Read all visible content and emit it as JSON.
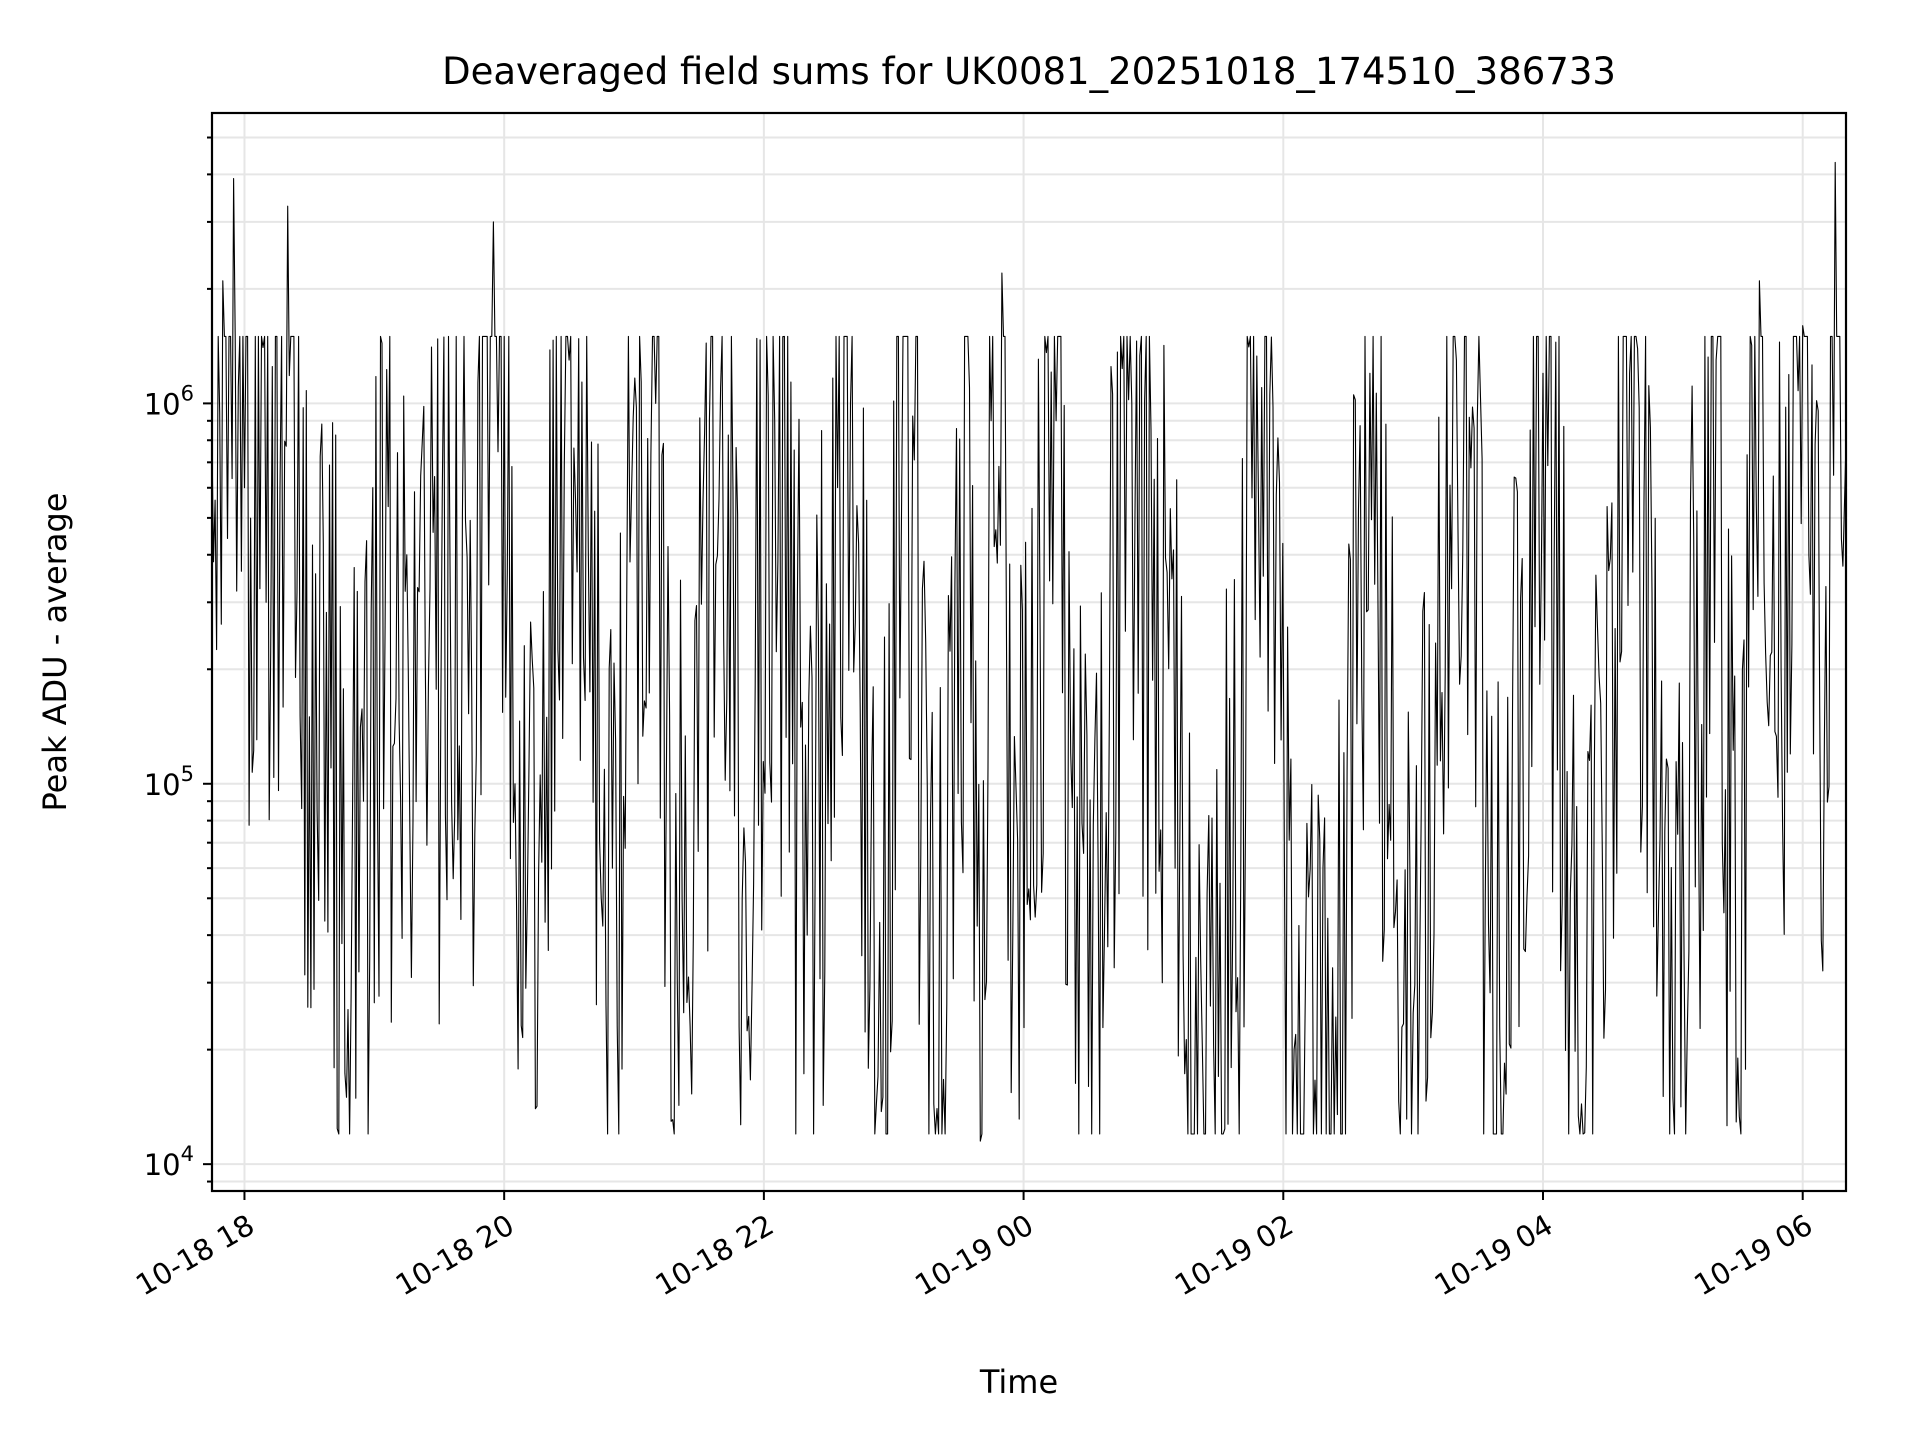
{
  "chart_data": {
    "type": "line",
    "title": "Deaveraged field sums for UK0081_20251018_174510_386733",
    "xlabel": "Time",
    "ylabel": "Peak ADU - average",
    "yscale": "log",
    "ylim": [
      8500,
      5800000
    ],
    "xlim": [
      "2025-10-18 17:45",
      "2025-10-19 06:20"
    ],
    "grid": true,
    "line_color": "#000000",
    "x_ticks": [
      {
        "t": "2025-10-18 18:00",
        "label": "10-18 18"
      },
      {
        "t": "2025-10-18 20:00",
        "label": "10-18 20"
      },
      {
        "t": "2025-10-18 22:00",
        "label": "10-18 22"
      },
      {
        "t": "2025-10-19 00:00",
        "label": "10-19 00"
      },
      {
        "t": "2025-10-19 02:00",
        "label": "10-19 02"
      },
      {
        "t": "2025-10-19 04:00",
        "label": "10-19 04"
      },
      {
        "t": "2025-10-19 06:00",
        "label": "10-19 06"
      }
    ],
    "y_ticks": [
      {
        "value": 10000,
        "base": "10",
        "exp": "4"
      },
      {
        "value": 100000,
        "base": "10",
        "exp": "5"
      },
      {
        "value": 1000000,
        "base": "10",
        "exp": "6"
      }
    ],
    "series": [
      {
        "points": [
          [
            "2025-10-18 17:45",
            800000
          ],
          [
            "2025-10-18 17:50",
            2100000
          ],
          [
            "2025-10-18 17:55",
            3900000
          ],
          [
            "2025-10-18 18:00",
            600000
          ],
          [
            "2025-10-18 18:10",
            300000
          ],
          [
            "2025-10-18 18:20",
            3300000
          ],
          [
            "2025-10-18 18:30",
            150000
          ],
          [
            "2025-10-18 18:40",
            110000
          ],
          [
            "2025-10-18 18:45",
            38000
          ],
          [
            "2025-10-18 18:55",
            90000
          ],
          [
            "2025-10-18 19:05",
            260000
          ],
          [
            "2025-10-18 19:15",
            400000
          ],
          [
            "2025-10-18 19:25",
            180000
          ],
          [
            "2025-10-18 19:35",
            350000
          ],
          [
            "2025-10-18 19:45",
            180000
          ],
          [
            "2025-10-18 19:55",
            3000000
          ],
          [
            "2025-10-18 20:05",
            100000
          ],
          [
            "2025-10-18 20:10",
            29000
          ],
          [
            "2025-10-18 20:30",
            1300000
          ],
          [
            "2025-10-18 20:50",
            60000
          ],
          [
            "2025-10-18 21:10",
            1000000
          ],
          [
            "2025-10-18 21:20",
            30000
          ],
          [
            "2025-10-18 21:40",
            1100000
          ],
          [
            "2025-10-18 21:50",
            50000
          ],
          [
            "2025-10-18 22:05",
            900000
          ],
          [
            "2025-10-18 22:20",
            40000
          ],
          [
            "2025-10-18 22:40",
            1000000
          ],
          [
            "2025-10-18 22:55",
            15000
          ],
          [
            "2025-10-18 23:05",
            1500000
          ],
          [
            "2025-10-18 23:20",
            14000
          ],
          [
            "2025-10-18 23:35",
            1100000
          ],
          [
            "2025-10-18 23:40",
            11500
          ],
          [
            "2025-10-18 23:45",
            900000
          ],
          [
            "2025-10-18 23:50",
            2200000
          ],
          [
            "2025-10-18 23:55",
            40000
          ],
          [
            "2025-10-19 00:15",
            900000
          ],
          [
            "2025-10-19 00:30",
            16000
          ],
          [
            "2025-10-19 00:50",
            1000000
          ],
          [
            "2025-10-19 01:10",
            60000
          ],
          [
            "2025-10-19 01:30",
            17000
          ],
          [
            "2025-10-19 01:50",
            1100000
          ],
          [
            "2025-10-19 02:05",
            20000
          ],
          [
            "2025-10-19 02:25",
            13500
          ],
          [
            "2025-10-19 02:40",
            1200000
          ],
          [
            "2025-10-19 03:00",
            25000
          ],
          [
            "2025-10-19 03:20",
            1300000
          ],
          [
            "2025-10-19 03:40",
            23000
          ],
          [
            "2025-10-19 04:00",
            1200000
          ],
          [
            "2025-10-19 04:20",
            18000
          ],
          [
            "2025-10-19 04:40",
            1200000
          ],
          [
            "2025-10-19 05:00",
            15000
          ],
          [
            "2025-10-19 05:20",
            1300000
          ],
          [
            "2025-10-19 05:30",
            19000
          ],
          [
            "2025-10-19 05:40",
            2100000
          ],
          [
            "2025-10-19 05:50",
            200000
          ],
          [
            "2025-10-19 06:00",
            1600000
          ],
          [
            "2025-10-19 06:10",
            130000
          ],
          [
            "2025-10-19 06:15",
            4300000
          ],
          [
            "2025-10-19 06:20",
            800000
          ]
        ]
      }
    ]
  }
}
